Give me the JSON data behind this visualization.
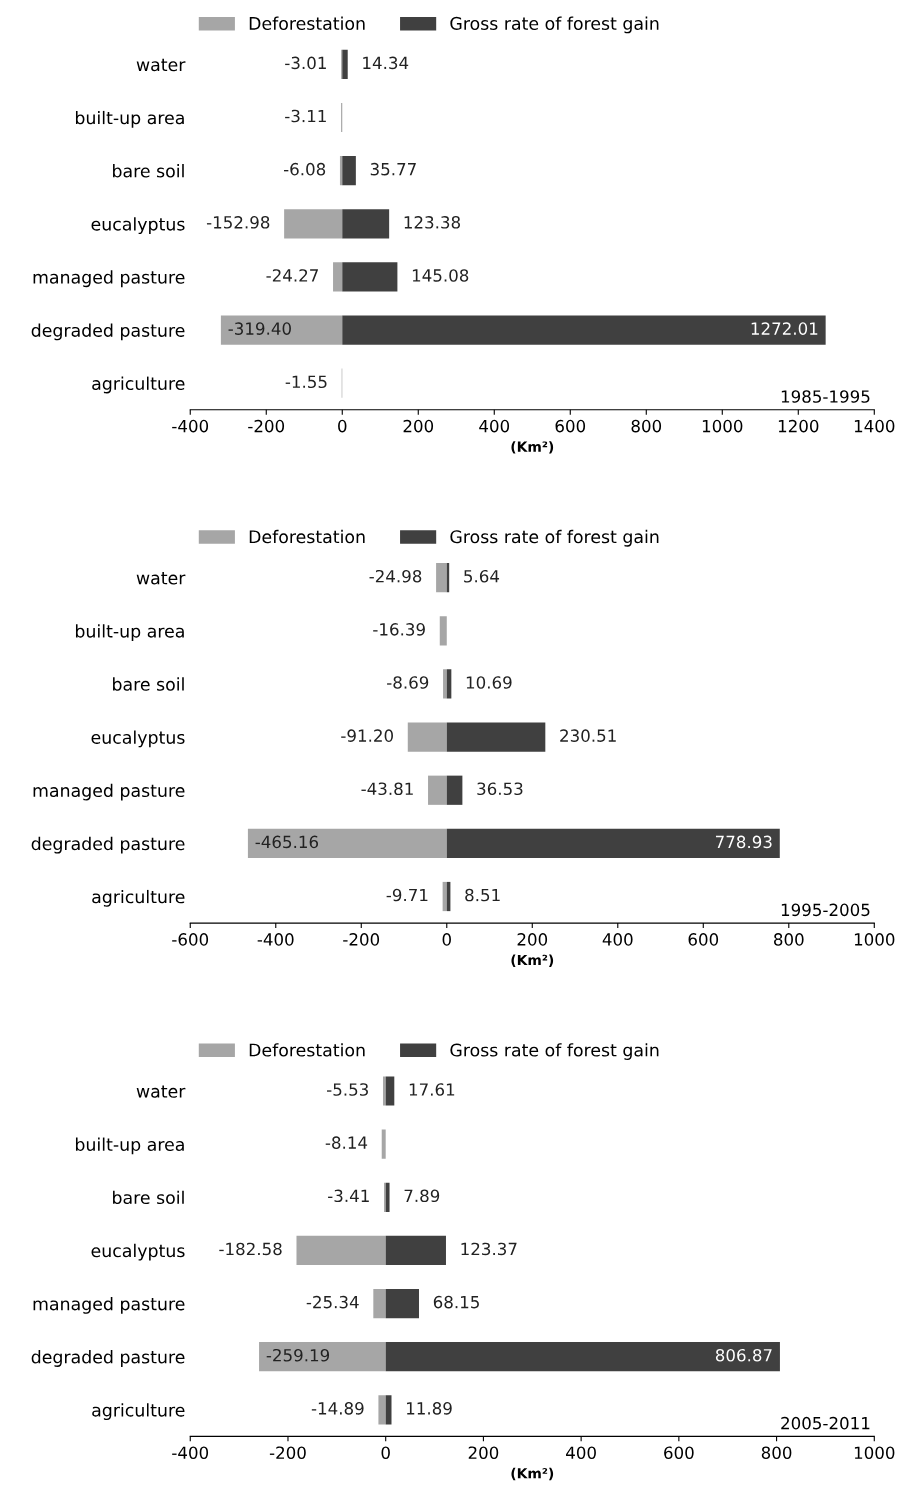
{
  "chart_data": [
    {
      "type": "bar",
      "orientation": "horizontal",
      "categories": [
        "water",
        "built-up area",
        "bare soil",
        "eucalyptus",
        "managed pasture",
        "degraded pasture",
        "agriculture"
      ],
      "stacked": true,
      "xlabel": "(Km²)",
      "xlim": [
        -400,
        1400
      ],
      "xticks": [
        -400,
        -200,
        0,
        200,
        400,
        600,
        800,
        1000,
        1200,
        1400
      ],
      "grid": false,
      "legend": "top",
      "annotations": [
        "1985-1995"
      ],
      "series": [
        {
          "name": "Deforestation",
          "color": "#a6a6a6",
          "values": [
            -3.01,
            -3.11,
            -6.08,
            -152.98,
            -24.27,
            -319.4,
            -1.55
          ],
          "value_labels": [
            "-3.01",
            "-3.11",
            "-6.08",
            "-152.98",
            "-24.27",
            "-319.40",
            "-1.55"
          ]
        },
        {
          "name": "Gross rate of forest gain",
          "color": "#404040",
          "values": [
            14.34,
            null,
            35.77,
            123.38,
            145.08,
            1272.01,
            null
          ],
          "value_labels": [
            "14.34",
            null,
            "35.77",
            "123.38",
            "145.08",
            "1272.01",
            null
          ]
        }
      ]
    },
    {
      "type": "bar",
      "orientation": "horizontal",
      "categories": [
        "water",
        "built-up area",
        "bare soil",
        "eucalyptus",
        "managed pasture",
        "degraded pasture",
        "agriculture"
      ],
      "stacked": true,
      "xlabel": "(Km²)",
      "xlim": [
        -600,
        1000
      ],
      "xticks": [
        -600,
        -400,
        -200,
        0,
        200,
        400,
        600,
        800,
        1000
      ],
      "grid": false,
      "legend": "top",
      "annotations": [
        "1995-2005"
      ],
      "series": [
        {
          "name": "Deforestation",
          "color": "#a6a6a6",
          "values": [
            -24.98,
            -16.39,
            -8.69,
            -91.2,
            -43.81,
            -465.16,
            -9.71
          ],
          "value_labels": [
            "-24.98",
            "-16.39",
            "-8.69",
            "-91.20",
            "-43.81",
            "-465.16",
            "-9.71"
          ]
        },
        {
          "name": "Gross rate of forest gain",
          "color": "#404040",
          "values": [
            5.64,
            null,
            10.69,
            230.51,
            36.53,
            778.93,
            8.51
          ],
          "value_labels": [
            "5.64",
            null,
            "10.69",
            "230.51",
            "36.53",
            "778.93",
            "8.51"
          ]
        }
      ]
    },
    {
      "type": "bar",
      "orientation": "horizontal",
      "categories": [
        "water",
        "built-up area",
        "bare soil",
        "eucalyptus",
        "managed pasture",
        "degraded pasture",
        "agriculture"
      ],
      "stacked": true,
      "xlabel": "(Km²)",
      "xlim": [
        -400,
        1000
      ],
      "xticks": [
        -400,
        -200,
        0,
        200,
        400,
        600,
        800,
        1000
      ],
      "grid": false,
      "legend": "top",
      "annotations": [
        "2005-2011"
      ],
      "series": [
        {
          "name": "Deforestation",
          "color": "#a6a6a6",
          "values": [
            -5.53,
            -8.14,
            -3.41,
            -182.58,
            -25.34,
            -259.19,
            -14.89
          ],
          "value_labels": [
            "-5.53",
            "-8.14",
            "-3.41",
            "-182.58",
            "-25.34",
            "-259.19",
            "-14.89"
          ]
        },
        {
          "name": "Gross rate of forest gain",
          "color": "#404040",
          "values": [
            17.61,
            null,
            7.89,
            123.37,
            68.15,
            806.87,
            11.89
          ],
          "value_labels": [
            "17.61",
            null,
            "7.89",
            "123.37",
            "68.15",
            "806.87",
            "11.89"
          ]
        }
      ]
    }
  ]
}
